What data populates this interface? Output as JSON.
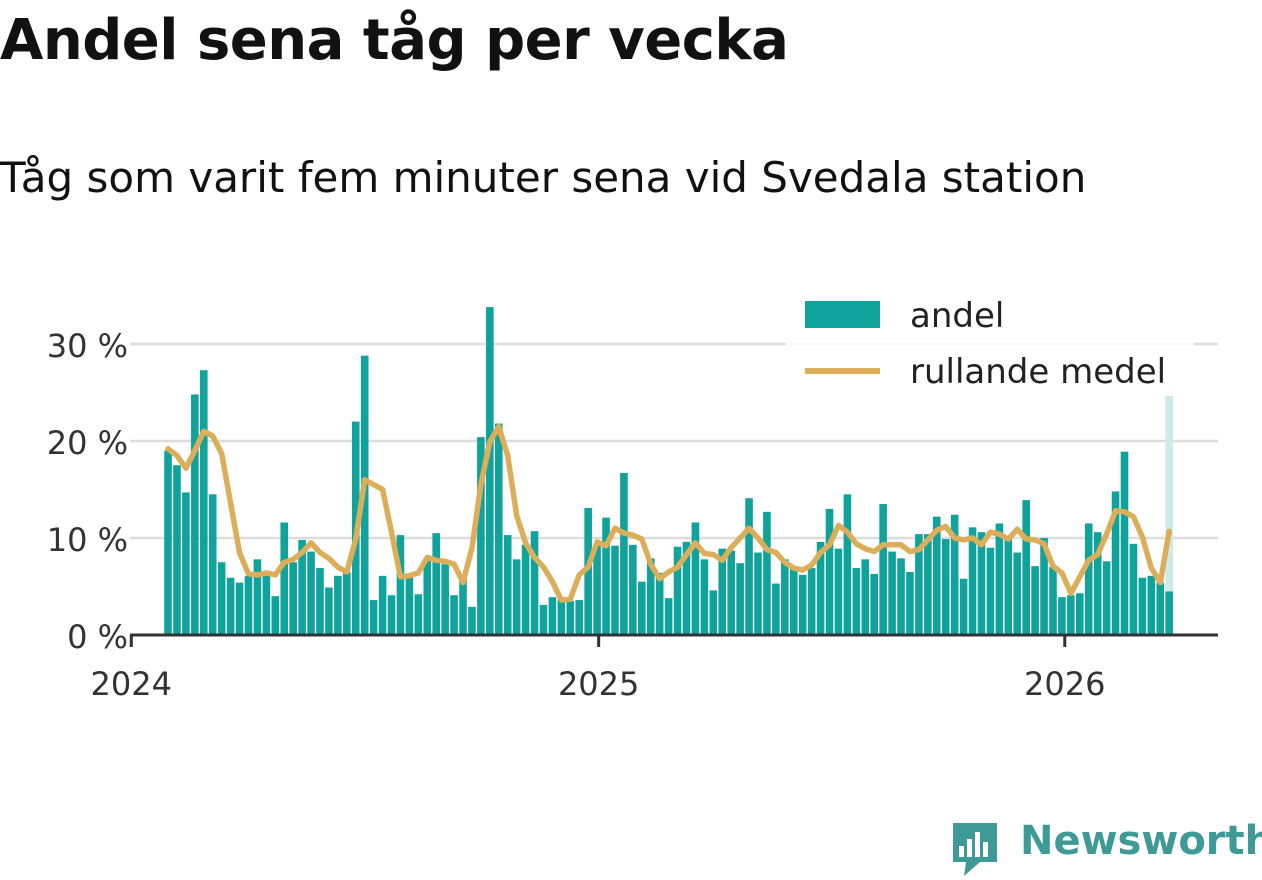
{
  "title": "Andel sena tåg per vecka",
  "subtitle": "Tåg som varit fem minuter sena vid Svedala station",
  "brand": {
    "name": "Newsworthy",
    "icon": "bar-chart-logo-icon"
  },
  "colors": {
    "bar": "#0fa39b",
    "line": "#dcae5a",
    "grid": "#dddddd",
    "axis": "#333333",
    "partial_bar": "#cdebe9"
  },
  "chart_data": {
    "type": "bar",
    "x_axis": {
      "type": "date",
      "range": [
        "2023-12-31",
        "2026-05-01"
      ],
      "ticks": [
        "2024",
        "2025",
        "2026"
      ]
    },
    "y_axis": {
      "range": [
        0,
        33
      ],
      "ticks": [
        0,
        10,
        20,
        30
      ],
      "tick_labels": [
        "0 %",
        "10 %",
        "20 %",
        "30 %"
      ],
      "unit": "%"
    },
    "grid": true,
    "legend": {
      "placement": "top-right",
      "entries": [
        "andel",
        "rullande medel"
      ]
    },
    "week_start": [
      "2024-01-29",
      "2024-02-05",
      "2024-02-12",
      "2024-02-19",
      "2024-02-26",
      "2024-03-04",
      "2024-03-11",
      "2024-03-18",
      "2024-03-25",
      "2024-04-01",
      "2024-04-08",
      "2024-04-15",
      "2024-04-22",
      "2024-04-29",
      "2024-05-06",
      "2024-05-13",
      "2024-05-20",
      "2024-05-27",
      "2024-06-03",
      "2024-06-10",
      "2024-06-17",
      "2024-06-24",
      "2024-07-01",
      "2024-07-08",
      "2024-07-15",
      "2024-07-22",
      "2024-07-29",
      "2024-08-05",
      "2024-08-12",
      "2024-08-19",
      "2024-08-26",
      "2024-09-02",
      "2024-09-09",
      "2024-09-16",
      "2024-09-23",
      "2024-09-30",
      "2024-10-07",
      "2024-10-14",
      "2024-10-21",
      "2024-10-28",
      "2024-11-04",
      "2024-11-11",
      "2024-11-18",
      "2024-11-25",
      "2024-12-02",
      "2024-12-09",
      "2024-12-16",
      "2024-12-23",
      "2024-12-30",
      "2025-01-06",
      "2025-01-13",
      "2025-01-20",
      "2025-01-27",
      "2025-02-03",
      "2025-02-10",
      "2025-02-17",
      "2025-02-24",
      "2025-03-03",
      "2025-03-10",
      "2025-03-17",
      "2025-03-24",
      "2025-03-31",
      "2025-04-07",
      "2025-04-14",
      "2025-04-21",
      "2025-04-28",
      "2025-05-05",
      "2025-05-12",
      "2025-05-19",
      "2025-05-26",
      "2025-06-02",
      "2025-06-09",
      "2025-06-16",
      "2025-06-23",
      "2025-06-30",
      "2025-07-07",
      "2025-07-14",
      "2025-07-21",
      "2025-07-28",
      "2025-08-04",
      "2025-08-11",
      "2025-08-18",
      "2025-08-25",
      "2025-09-01",
      "2025-09-08",
      "2025-09-15",
      "2025-09-22",
      "2025-09-29",
      "2025-10-06",
      "2025-10-13",
      "2025-10-20",
      "2025-10-27",
      "2025-11-03",
      "2025-11-10",
      "2025-11-17",
      "2025-11-24",
      "2025-12-01",
      "2025-12-08",
      "2025-12-15",
      "2025-12-22",
      "2025-12-29",
      "2026-01-05",
      "2026-01-12",
      "2026-01-19",
      "2026-01-26",
      "2026-02-02",
      "2026-02-09",
      "2026-02-16",
      "2026-02-23",
      "2026-03-02",
      "2026-03-09",
      "2026-03-16",
      "2026-03-23"
    ],
    "series": [
      {
        "name": "andel",
        "type": "bar",
        "values": [
          19.0,
          17.5,
          14.7,
          24.8,
          27.3,
          14.5,
          7.5,
          5.9,
          5.4,
          6.1,
          7.8,
          6.1,
          4.0,
          11.6,
          7.5,
          9.8,
          8.6,
          6.9,
          4.9,
          6.1,
          6.5,
          22.0,
          28.8,
          3.6,
          6.1,
          4.1,
          10.3,
          6.1,
          4.2,
          7.8,
          10.5,
          7.3,
          4.1,
          6.1,
          2.9,
          20.4,
          33.8,
          21.8,
          10.3,
          7.8,
          9.3,
          10.7,
          3.1,
          3.9,
          3.6,
          3.5,
          3.6,
          13.1,
          9.3,
          12.1,
          9.2,
          16.7,
          9.3,
          5.5,
          7.9,
          6.4,
          3.8,
          9.1,
          9.6,
          11.6,
          7.8,
          4.6,
          8.9,
          8.7,
          7.4,
          14.1,
          8.5,
          12.7,
          5.3,
          7.8,
          6.9,
          6.2,
          6.9,
          9.6,
          13.0,
          8.9,
          14.5,
          6.9,
          7.8,
          6.3,
          13.5,
          8.6,
          7.9,
          6.5,
          10.4,
          10.4,
          12.2,
          9.9,
          12.4,
          5.8,
          11.1,
          10.6,
          9.0,
          11.5,
          10.0,
          8.5,
          13.9,
          7.1,
          10.0,
          7.0,
          3.9,
          4.1,
          4.3,
          11.5,
          10.6,
          7.6,
          14.8,
          18.9,
          9.4,
          5.9,
          6.1,
          5.4,
          4.5,
          23.2
        ],
        "partial_last_top": 25.2
      },
      {
        "name": "rullande medel",
        "type": "line",
        "values": [
          19.2,
          18.5,
          17.2,
          19.0,
          21.0,
          20.5,
          18.7,
          13.6,
          8.5,
          6.3,
          6.2,
          6.4,
          6.2,
          7.5,
          7.8,
          8.5,
          9.5,
          8.5,
          7.9,
          7.0,
          6.5,
          9.9,
          16.0,
          15.5,
          15.0,
          10.6,
          6.0,
          6.1,
          6.4,
          8.0,
          7.7,
          7.6,
          7.3,
          5.4,
          9.0,
          15.5,
          19.9,
          21.5,
          18.5,
          12.3,
          9.5,
          8.0,
          7.0,
          5.5,
          3.6,
          3.7,
          6.2,
          7.0,
          9.6,
          9.2,
          11.0,
          10.5,
          10.3,
          9.9,
          7.3,
          5.8,
          6.5,
          7.0,
          8.3,
          9.5,
          8.4,
          8.3,
          7.7,
          9.0,
          10.0,
          11.0,
          10.0,
          8.8,
          8.5,
          7.5,
          6.9,
          6.7,
          7.2,
          8.5,
          9.3,
          11.3,
          10.6,
          9.4,
          8.9,
          8.6,
          9.3,
          9.3,
          9.3,
          8.6,
          8.8,
          9.8,
          10.8,
          11.2,
          10.0,
          9.8,
          10.0,
          9.3,
          10.6,
          10.4,
          9.9,
          10.9,
          9.9,
          9.8,
          9.4,
          7.1,
          6.4,
          4.3,
          6.0,
          7.7,
          8.3,
          10.4,
          12.8,
          12.7,
          12.2,
          10.1,
          6.9,
          5.4,
          10.7
        ]
      }
    ]
  }
}
